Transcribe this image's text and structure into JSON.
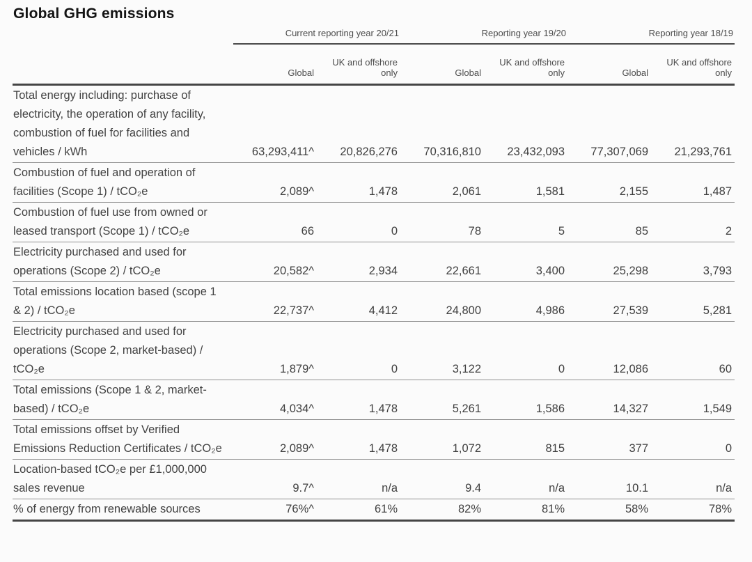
{
  "page": {
    "title": "Global GHG emissions"
  },
  "colors": {
    "background": "#fbfbfb",
    "title_text": "#141414",
    "body_text": "#414141",
    "header_text": "#4c4c4c",
    "thin_rule": "#8f8f8f",
    "thick_rule": "#454545"
  },
  "table": {
    "year_groups": [
      "Current reporting year 20/21",
      "Reporting year 19/20",
      "Reporting year 18/19"
    ],
    "sub_headers": {
      "global": "Global",
      "uk_offshore": "UK and offshore only"
    },
    "rows": [
      {
        "label": "Total energy including: purchase of electricity, the operation of any facility, combustion of fuel for facilities and vehicles / kWh",
        "values": [
          "63,293,411^",
          "20,826,276",
          "70,316,810",
          "23,432,093",
          "77,307,069",
          "21,293,761"
        ]
      },
      {
        "label": "Combustion of fuel and operation of facilities (Scope 1) / tCO₂e",
        "values": [
          "2,089^",
          "1,478",
          "2,061",
          "1,581",
          "2,155",
          "1,487"
        ]
      },
      {
        "label": "Combustion of fuel use from owned or leased transport (Scope 1) / tCO₂e",
        "values": [
          "66",
          "0",
          "78",
          "5",
          "85",
          "2"
        ]
      },
      {
        "label": "Electricity purchased and used for operations (Scope 2) / tCO₂e",
        "values": [
          "20,582^",
          "2,934",
          "22,661",
          "3,400",
          "25,298",
          "3,793"
        ]
      },
      {
        "label": "Total emissions location based (scope 1 & 2) / tCO₂e",
        "values": [
          "22,737^",
          "4,412",
          "24,800",
          "4,986",
          "27,539",
          "5,281"
        ]
      },
      {
        "label": "Electricity purchased and used for operations (Scope 2, market-based) / tCO₂e",
        "values": [
          "1,879^",
          "0",
          "3,122",
          "0",
          "12,086",
          "60"
        ]
      },
      {
        "label": "Total emissions (Scope 1 & 2, market-based) / tCO₂e",
        "values": [
          "4,034^",
          "1,478",
          "5,261",
          "1,586",
          "14,327",
          "1,549"
        ]
      },
      {
        "label": "Total emissions offset by Verified Emissions Reduction Certificates / tCO₂e",
        "values": [
          "2,089^",
          "1,478",
          "1,072",
          "815",
          "377",
          "0"
        ]
      },
      {
        "label": "Location-based tCO₂e per £1,000,000 sales revenue",
        "values": [
          "9.7^",
          "n/a",
          "9.4",
          "n/a",
          "10.1",
          "n/a"
        ]
      },
      {
        "label": "% of energy from renewable sources",
        "values": [
          "76%^",
          "61%",
          "82%",
          "81%",
          "58%",
          "78%"
        ]
      }
    ]
  }
}
